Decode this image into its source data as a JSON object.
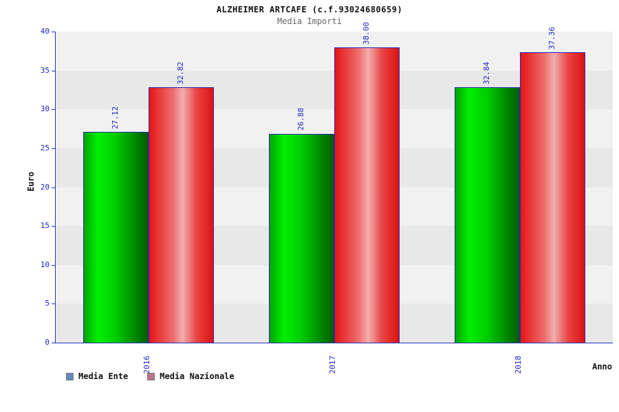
{
  "title": "ALZHEIMER ARTCAFE (c.f.93024680659)",
  "subtitle": "Media Importi",
  "axes": {
    "ylabel": "Euro",
    "xlabel": "Anno"
  },
  "legend": {
    "items": [
      {
        "label": "Media Ente",
        "swatch_color": "#6688bb"
      },
      {
        "label": "Media Nazionale",
        "swatch_color": "#bb7788"
      }
    ]
  },
  "colors": {
    "bar_media_ente": "#00d000",
    "bar_media_nazionale": "#e51515",
    "axis_text": "#2222cc",
    "value_label_text": "#2222cc",
    "band_light": "#f1f1f1",
    "band_dark": "#e8e8e8"
  },
  "chart_data": {
    "type": "bar",
    "title": "ALZHEIMER ARTCAFE (c.f.93024680659)",
    "subtitle": "Media Importi",
    "xlabel": "Anno",
    "ylabel": "Euro",
    "categories": [
      "2016",
      "2017",
      "2018"
    ],
    "series": [
      {
        "name": "Media Ente",
        "values": [
          27.12,
          26.88,
          32.84
        ],
        "labels": [
          "27.12",
          "26.88",
          "32.84"
        ]
      },
      {
        "name": "Media Nazionale",
        "values": [
          32.82,
          38.0,
          37.36
        ],
        "labels": [
          "32.82",
          "38.00",
          "37.36"
        ]
      }
    ],
    "ylim": [
      0,
      40
    ],
    "yticks": [
      0,
      5,
      10,
      15,
      20,
      25,
      30,
      35,
      40
    ],
    "grid": "horizontal-bands",
    "legend_position": "bottom-left"
  }
}
